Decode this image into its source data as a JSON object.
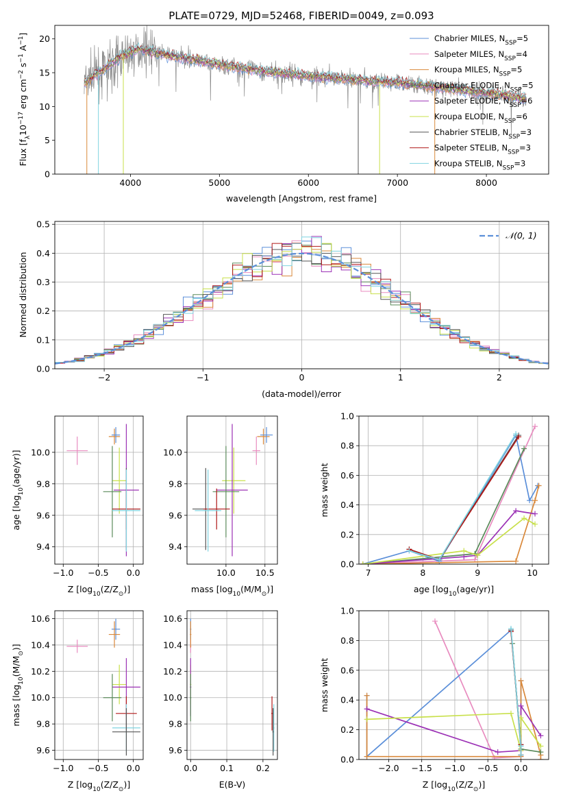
{
  "figure_title": "PLATE=0729, MJD=52468, FIBERID=0049, z=0.093",
  "colors": {
    "chabrier_miles": "#5b8fd9",
    "salpeter_miles": "#e88bbf",
    "kroupa_miles": "#d9883a",
    "chabrier_elodie": "#5a8a5a",
    "salpeter_elodie": "#9b30b5",
    "kroupa_elodie": "#c8e04a",
    "chabrier_stelib": "#555555",
    "salpeter_stelib": "#b01818",
    "kroupa_stelib": "#7fd3e0",
    "normal": "#5b8fd9",
    "grid": "#b0b0b0"
  },
  "chart_data": [
    {
      "id": "spectrum",
      "type": "line",
      "xlabel": "wavelength [Angstrom, rest frame]",
      "ylabel_main": "Flux [f",
      "ylabel_sub": "λ",
      "ylabel_rest": "10",
      "ylabel_exp": "−17",
      "ylabel_tail": " erg cm",
      "ylabel_exp2": "−2",
      "ylabel_s": " s",
      "ylabel_exp3": "−1",
      "ylabel_A": " A",
      "ylabel_exp4": "−1",
      "ylabel_end": "]",
      "xlim": [
        3150,
        8700
      ],
      "ylim": [
        0,
        22
      ],
      "xticks": [
        4000,
        5000,
        6000,
        7000,
        8000
      ],
      "yticks": [
        0,
        5,
        10,
        15,
        20
      ],
      "wl_range": [
        3480,
        8450
      ],
      "continuum": [
        [
          3480,
          13.5
        ],
        [
          3700,
          15.5
        ],
        [
          3900,
          17.5
        ],
        [
          4100,
          18.5
        ],
        [
          4300,
          17.8
        ],
        [
          4600,
          17.2
        ],
        [
          5000,
          16.2
        ],
        [
          5500,
          15.2
        ],
        [
          6000,
          14.5
        ],
        [
          6500,
          14.0
        ],
        [
          7000,
          13.5
        ],
        [
          7500,
          12.8
        ],
        [
          8000,
          12.0
        ],
        [
          8450,
          11.2
        ]
      ],
      "legend": [
        {
          "name": "Chabrier MILES, N",
          "sub": "SSP",
          "tail": "=5",
          "key": "chabrier_miles"
        },
        {
          "name": "Salpeter MILES, N",
          "sub": "SSP",
          "tail": "=4",
          "key": "salpeter_miles"
        },
        {
          "name": "Kroupa MILES, N",
          "sub": "SSP",
          "tail": "=5",
          "key": "kroupa_miles"
        },
        {
          "name": "Chabrier ELODIE, N",
          "sub": "SSP",
          "tail": "=5",
          "key": "chabrier_elodie"
        },
        {
          "name": "Salpeter ELODIE, N",
          "sub": "SSP",
          "tail": "=6",
          "key": "salpeter_elodie"
        },
        {
          "name": "Kroupa ELODIE, N",
          "sub": "SSP",
          "tail": "=6",
          "key": "kroupa_elodie"
        },
        {
          "name": "Chabrier STELIB, N",
          "sub": "SSP",
          "tail": "=3",
          "key": "chabrier_stelib"
        },
        {
          "name": "Salpeter STELIB, N",
          "sub": "SSP",
          "tail": "=3",
          "key": "salpeter_stelib"
        },
        {
          "name": "Kroupa STELIB, N",
          "sub": "SSP",
          "tail": "=3",
          "key": "kroupa_stelib"
        }
      ]
    },
    {
      "id": "residuals",
      "type": "line",
      "xlabel": "(data-model)/error",
      "ylabel": "Normed distribution",
      "xlim": [
        -2.5,
        2.5
      ],
      "ylim": [
        0,
        0.51
      ],
      "xticks": [
        -2,
        -1,
        0,
        1,
        2
      ],
      "xtick_labels": [
        "−2",
        "−1",
        "0",
        "1",
        "2"
      ],
      "yticks": [
        0.0,
        0.1,
        0.2,
        0.3,
        0.4,
        0.5
      ],
      "ytick_labels": [
        "0.0",
        "0.1",
        "0.2",
        "0.3",
        "0.4",
        "0.5"
      ],
      "bin_width": 0.1,
      "legend_label": "𝒩(0, 1)",
      "legend_placement": "top-right",
      "grid": true
    },
    {
      "id": "age_vs_Z",
      "type": "scatter",
      "xlabel": "Z [log",
      "xlabel_sub": "10",
      "xlabel_tail": "(Z/Z",
      "xlabel_sub2": "⊙",
      "xlabel_end": ")]",
      "ylabel": "age  [log₁₀(age/yr)]",
      "xlim": [
        -1.12,
        0.14
      ],
      "ylim": [
        9.29,
        10.23
      ],
      "xticks": [
        -1.0,
        -0.5,
        0.0
      ],
      "xtick_labels": [
        "−1.0",
        "−0.5",
        "0.0"
      ],
      "yticks": [
        9.4,
        9.6,
        9.8,
        10.0
      ],
      "ytick_labels": [
        "9.4",
        "9.6",
        "9.8",
        "10.0"
      ],
      "points": [
        {
          "key": "salpeter_miles",
          "x": -0.8,
          "xerr": 0.15,
          "y": 10.01,
          "yerr": 0.09
        },
        {
          "key": "kroupa_miles",
          "x": -0.27,
          "xerr": 0.08,
          "y": 10.1,
          "yerr": 0.05
        },
        {
          "key": "chabrier_miles",
          "x": -0.25,
          "xerr": 0.06,
          "y": 10.11,
          "yerr": 0.05
        },
        {
          "key": "kroupa_elodie",
          "x": -0.2,
          "xerr": 0.1,
          "y": 9.82,
          "yerr": 0.21
        },
        {
          "key": "salpeter_elodie",
          "x": -0.1,
          "xerr": 0.18,
          "y": 9.76,
          "yerr": 0.42
        },
        {
          "key": "chabrier_elodie",
          "x": -0.3,
          "xerr": 0.13,
          "y": 9.75,
          "yerr": 0.29
        },
        {
          "key": "chabrier_stelib",
          "x": -0.1,
          "xerr": 0.2,
          "y": 9.64,
          "yerr": 0.26
        },
        {
          "key": "salpeter_stelib",
          "x": -0.1,
          "xerr": 0.2,
          "y": 9.64,
          "yerr": 0.13
        },
        {
          "key": "kroupa_stelib",
          "x": -0.1,
          "xerr": 0.2,
          "y": 9.63,
          "yerr": 0.26
        }
      ]
    },
    {
      "id": "age_vs_mass",
      "type": "scatter",
      "xlabel": "mass [log₁₀(M/M⊙)]",
      "xlim": [
        9.5,
        10.66
      ],
      "ylim": [
        9.29,
        10.23
      ],
      "xticks": [
        10.0,
        10.5
      ],
      "xtick_labels": [
        "10.0",
        "10.5"
      ],
      "yticks": [
        9.4,
        9.6,
        9.8,
        10.0
      ],
      "ytick_labels": [
        "9.4",
        "9.6",
        "9.8",
        "10.0"
      ],
      "points": [
        {
          "key": "salpeter_miles",
          "x": 10.39,
          "xerr": 0.05,
          "y": 10.01,
          "yerr": 0.09
        },
        {
          "key": "kroupa_miles",
          "x": 10.48,
          "xerr": 0.08,
          "y": 10.1,
          "yerr": 0.05
        },
        {
          "key": "chabrier_miles",
          "x": 10.52,
          "xerr": 0.08,
          "y": 10.11,
          "yerr": 0.05
        },
        {
          "key": "kroupa_elodie",
          "x": 10.1,
          "xerr": 0.15,
          "y": 9.82,
          "yerr": 0.21
        },
        {
          "key": "salpeter_elodie",
          "x": 10.08,
          "xerr": 0.2,
          "y": 9.76,
          "yerr": 0.42
        },
        {
          "key": "chabrier_elodie",
          "x": 10.0,
          "xerr": 0.17,
          "y": 9.75,
          "yerr": 0.29
        },
        {
          "key": "chabrier_stelib",
          "x": 9.74,
          "xerr": 0.17,
          "y": 9.64,
          "yerr": 0.26
        },
        {
          "key": "salpeter_stelib",
          "x": 9.88,
          "xerr": 0.17,
          "y": 9.64,
          "yerr": 0.13
        },
        {
          "key": "kroupa_stelib",
          "x": 9.77,
          "xerr": 0.17,
          "y": 9.63,
          "yerr": 0.26
        }
      ]
    },
    {
      "id": "mass_weight_vs_age",
      "type": "line",
      "xlabel": "age  [log₁₀(age/yr)]",
      "ylabel": "mass weight",
      "xlim": [
        6.83,
        10.3
      ],
      "ylim": [
        0,
        1.0
      ],
      "xticks": [
        7,
        8,
        9,
        10
      ],
      "xtick_labels": [
        "7",
        "8",
        "9",
        "10"
      ],
      "yticks": [
        0.0,
        0.2,
        0.4,
        0.6,
        0.8,
        1.0
      ],
      "ytick_labels": [
        "0.0",
        "0.2",
        "0.4",
        "0.6",
        "0.8",
        "1.0"
      ],
      "series": [
        {
          "key": "salpeter_miles",
          "x": [
            6.9,
            8.95,
            10.05
          ],
          "y": [
            0.0,
            0.03,
            0.93
          ]
        },
        {
          "key": "chabrier_miles",
          "x": [
            6.9,
            7.75,
            8.3,
            9.7,
            9.95,
            10.1
          ],
          "y": [
            0.0,
            0.09,
            0.02,
            0.87,
            0.43,
            0.53
          ]
        },
        {
          "key": "kroupa_miles",
          "x": [
            6.9,
            9.7,
            10.05,
            10.12
          ],
          "y": [
            0.0,
            0.02,
            0.43,
            0.53
          ]
        },
        {
          "key": "chabrier_elodie",
          "x": [
            6.9,
            8.95,
            9.85
          ],
          "y": [
            0.0,
            0.07,
            0.78
          ]
        },
        {
          "key": "salpeter_elodie",
          "x": [
            6.9,
            8.75,
            9.0,
            9.7,
            10.05
          ],
          "y": [
            0.0,
            0.05,
            0.06,
            0.36,
            0.34
          ]
        },
        {
          "key": "kroupa_elodie",
          "x": [
            6.9,
            8.75,
            9.0,
            9.85,
            10.05
          ],
          "y": [
            0.0,
            0.09,
            0.06,
            0.31,
            0.27
          ]
        },
        {
          "key": "chabrier_stelib",
          "x": [
            7.75,
            8.3,
            9.75
          ],
          "y": [
            0.1,
            0.03,
            0.87
          ]
        },
        {
          "key": "salpeter_stelib",
          "x": [
            7.75,
            8.3,
            9.75
          ],
          "y": [
            0.1,
            0.03,
            0.86
          ]
        },
        {
          "key": "kroupa_stelib",
          "x": [
            7.75,
            8.3,
            9.7
          ],
          "y": [
            0.09,
            0.03,
            0.88
          ]
        }
      ]
    },
    {
      "id": "mass_vs_Z",
      "type": "scatter",
      "xlabel": "Z [log₁₀(Z/Z⊙)]",
      "ylabel": "mass [log₁₀(M/M⊙)]",
      "xlim": [
        -1.12,
        0.14
      ],
      "ylim": [
        9.53,
        10.66
      ],
      "xticks": [
        -1.0,
        -0.5,
        0.0
      ],
      "xtick_labels": [
        "−1.0",
        "−0.5",
        "0.0"
      ],
      "yticks": [
        9.6,
        9.8,
        10.0,
        10.2,
        10.4,
        10.6
      ],
      "ytick_labels": [
        "9.6",
        "9.8",
        "10.0",
        "10.2",
        "10.4",
        "10.6"
      ],
      "points": [
        {
          "key": "salpeter_miles",
          "x": -0.8,
          "xerr": 0.15,
          "y": 10.39,
          "yerr": 0.05
        },
        {
          "key": "chabrier_miles",
          "x": -0.25,
          "xerr": 0.06,
          "y": 10.52,
          "yerr": 0.08
        },
        {
          "key": "kroupa_miles",
          "x": -0.27,
          "xerr": 0.08,
          "y": 10.48,
          "yerr": 0.1
        },
        {
          "key": "kroupa_elodie",
          "x": -0.2,
          "xerr": 0.1,
          "y": 10.1,
          "yerr": 0.15
        },
        {
          "key": "salpeter_elodie",
          "x": -0.1,
          "xerr": 0.2,
          "y": 10.08,
          "yerr": 0.22
        },
        {
          "key": "chabrier_elodie",
          "x": -0.3,
          "xerr": 0.13,
          "y": 10.0,
          "yerr": 0.18
        },
        {
          "key": "salpeter_stelib",
          "x": -0.1,
          "xerr": 0.15,
          "y": 9.88,
          "yerr": 0.13
        },
        {
          "key": "kroupa_stelib",
          "x": -0.1,
          "xerr": 0.2,
          "y": 9.77,
          "yerr": 0.18
        },
        {
          "key": "chabrier_stelib",
          "x": -0.1,
          "xerr": 0.2,
          "y": 9.74,
          "yerr": 0.18
        }
      ]
    },
    {
      "id": "mass_vs_ebv",
      "type": "scatter",
      "xlabel": "E(B-V)",
      "xlim": [
        -0.01,
        0.24
      ],
      "ylim": [
        9.53,
        10.66
      ],
      "xticks": [
        0.0,
        0.1,
        0.2
      ],
      "xtick_labels": [
        "0.0",
        "0.1",
        "0.2"
      ],
      "yticks": [
        9.6,
        9.8,
        10.0,
        10.2,
        10.4,
        10.6
      ],
      "ytick_labels": [
        "9.6",
        "9.8",
        "10.0",
        "10.2",
        "10.4",
        "10.6"
      ],
      "points": [
        {
          "key": "chabrier_miles",
          "x": 0.0,
          "xerr": 0.002,
          "y": 10.52,
          "yerr": 0.08
        },
        {
          "key": "salpeter_miles",
          "x": 0.0,
          "xerr": 0.002,
          "y": 10.39,
          "yerr": 0.05
        },
        {
          "key": "kroupa_miles",
          "x": 0.0,
          "xerr": 0.002,
          "y": 10.48,
          "yerr": 0.1
        },
        {
          "key": "kroupa_elodie",
          "x": 0.0,
          "xerr": 0.002,
          "y": 10.1,
          "yerr": 0.15
        },
        {
          "key": "salpeter_elodie",
          "x": 0.0,
          "xerr": 0.002,
          "y": 10.08,
          "yerr": 0.22
        },
        {
          "key": "chabrier_elodie",
          "x": 0.0,
          "xerr": 0.002,
          "y": 10.0,
          "yerr": 0.18
        },
        {
          "key": "salpeter_stelib",
          "x": 0.225,
          "xerr": 0.002,
          "y": 9.88,
          "yerr": 0.13
        },
        {
          "key": "kroupa_stelib",
          "x": 0.23,
          "xerr": 0.002,
          "y": 9.77,
          "yerr": 0.18
        },
        {
          "key": "chabrier_stelib",
          "x": 0.228,
          "xerr": 0.002,
          "y": 9.74,
          "yerr": 0.18
        }
      ]
    },
    {
      "id": "mass_weight_vs_Z",
      "type": "line",
      "xlabel": "Z [log₁₀(Z/Z⊙)]",
      "ylabel": "mass weight",
      "xlim": [
        -2.45,
        0.42
      ],
      "ylim": [
        0,
        1.0
      ],
      "xticks": [
        -2.0,
        -1.5,
        -1.0,
        -0.5,
        0.0
      ],
      "xtick_labels": [
        "−2.0",
        "−1.5",
        "−1.0",
        "−0.5",
        "0.0"
      ],
      "yticks": [
        0.0,
        0.2,
        0.4,
        0.6,
        0.8,
        1.0
      ],
      "ytick_labels": [
        "0.0",
        "0.2",
        "0.4",
        "0.6",
        "0.8",
        "1.0"
      ],
      "series": [
        {
          "key": "salpeter_miles",
          "x": [
            -1.3,
            -0.4,
            0.0,
            0.0
          ],
          "y": [
            0.93,
            0.01,
            0.02,
            0.03
          ]
        },
        {
          "key": "chabrier_miles",
          "x": [
            -2.33,
            -2.33,
            -0.15,
            0.0,
            0.0,
            0.0
          ],
          "y": [
            0.43,
            0.02,
            0.87,
            0.09,
            0.53,
            0.03
          ]
        },
        {
          "key": "kroupa_miles",
          "x": [
            -2.33,
            -2.33,
            0.0,
            0.0,
            0.3,
            0.3
          ],
          "y": [
            0.43,
            0.02,
            0.02,
            0.53,
            0.03,
            0.0
          ]
        },
        {
          "key": "chabrier_elodie",
          "x": [
            -0.13,
            0.0,
            0.3
          ],
          "y": [
            0.78,
            0.07,
            0.05
          ]
        },
        {
          "key": "salpeter_elodie",
          "x": [
            -2.33,
            -0.35,
            0.0,
            0.0,
            0.3
          ],
          "y": [
            0.34,
            0.05,
            0.06,
            0.36,
            0.16
          ]
        },
        {
          "key": "kroupa_elodie",
          "x": [
            -2.33,
            -0.15,
            0.0,
            0.0,
            0.3
          ],
          "y": [
            0.27,
            0.31,
            0.06,
            0.28,
            0.09
          ]
        },
        {
          "key": "chabrier_stelib",
          "x": [
            -0.15,
            0.0,
            0.0
          ],
          "y": [
            0.87,
            0.1,
            0.03
          ]
        },
        {
          "key": "salpeter_stelib",
          "x": [
            -0.15,
            0.0,
            0.0
          ],
          "y": [
            0.86,
            0.1,
            0.03
          ]
        },
        {
          "key": "kroupa_stelib",
          "x": [
            -0.15,
            0.0,
            0.0
          ],
          "y": [
            0.88,
            0.09,
            0.03
          ]
        }
      ]
    }
  ]
}
